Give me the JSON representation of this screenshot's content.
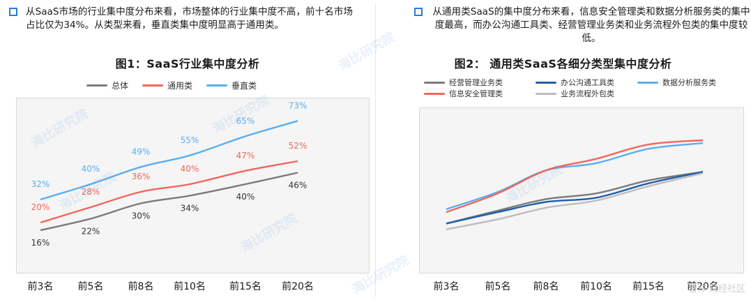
{
  "left": {
    "intro_text": "从SaaS市场的行业集中度分布来看，市场整体的行业集中度不高，前十名市场占比仅为34%。从类型来看，垂直类集中度明显高于通用类。",
    "chart_title": "图1：SaaS行业集中度分析"
  },
  "right": {
    "intro_text": "从通用类SaaS的集中度分布来看，信息安全管理类和数据分析服务类的集中度最高，而办公沟通工具类、经营管理业务类和业务流程外包类的集中度较低。",
    "chart_title": "图2：  通用类SaaS各细分类型集中度分析"
  },
  "watermark_text": "海比研究院",
  "footer_text": "雪球·财经社区",
  "colors": {
    "gray": "#7a7a7a",
    "red": "#f2665a",
    "blue": "#5aaef0",
    "navy": "#1f5fa8",
    "lightgray": "#bdbdbd",
    "accent": "#2a7ad6"
  },
  "chart_data": [
    {
      "type": "line",
      "title": "图1：SaaS行业集中度分析",
      "categories": [
        "前3名",
        "前5名",
        "前8名",
        "前10名",
        "前15名",
        "前20名"
      ],
      "series": [
        {
          "name": "总体",
          "color": "#7a7a7a",
          "values": [
            16,
            22,
            30,
            34,
            40,
            46
          ],
          "labels": [
            "16%",
            "22%",
            "30%",
            "34%",
            "40%",
            "46%"
          ]
        },
        {
          "name": "通用类",
          "color": "#f2665a",
          "values": [
            20,
            28,
            36,
            40,
            47,
            52
          ],
          "labels": [
            "20%",
            "28%",
            "36%",
            "40%",
            "47%",
            "52%"
          ]
        },
        {
          "name": "垂直类",
          "color": "#5aaef0",
          "values": [
            32,
            40,
            49,
            55,
            65,
            73
          ],
          "labels": [
            "32%",
            "40%",
            "49%",
            "55%",
            "65%",
            "73%"
          ]
        }
      ],
      "legend_position": "top",
      "grid": false,
      "ylim": [
        0,
        80
      ]
    },
    {
      "type": "line",
      "title": "图2：  通用类SaaS各细分类型集中度分析",
      "categories": [
        "前3名",
        "前5名",
        "前8名",
        "前10名",
        "前15名",
        "前20名"
      ],
      "series": [
        {
          "name": "经营管理业务类",
          "color": "#7a7a7a",
          "values": [
            26,
            35,
            43,
            47,
            56,
            62
          ]
        },
        {
          "name": "办公沟通工具类",
          "color": "#1f5fa8",
          "values": [
            26,
            34,
            41,
            44,
            54,
            62
          ]
        },
        {
          "name": "数据分析服务类",
          "color": "#5aaef0",
          "values": [
            36,
            48,
            63,
            68,
            78,
            82
          ]
        },
        {
          "name": "信息安全管理类",
          "color": "#f2665a",
          "values": [
            34,
            47,
            63,
            71,
            81,
            84
          ]
        },
        {
          "name": "业务流程外包类",
          "color": "#bdbdbd",
          "values": [
            22,
            29,
            37,
            42,
            52,
            61
          ]
        }
      ],
      "legend_position": "top",
      "grid": false,
      "ylim": [
        0,
        100
      ]
    }
  ]
}
